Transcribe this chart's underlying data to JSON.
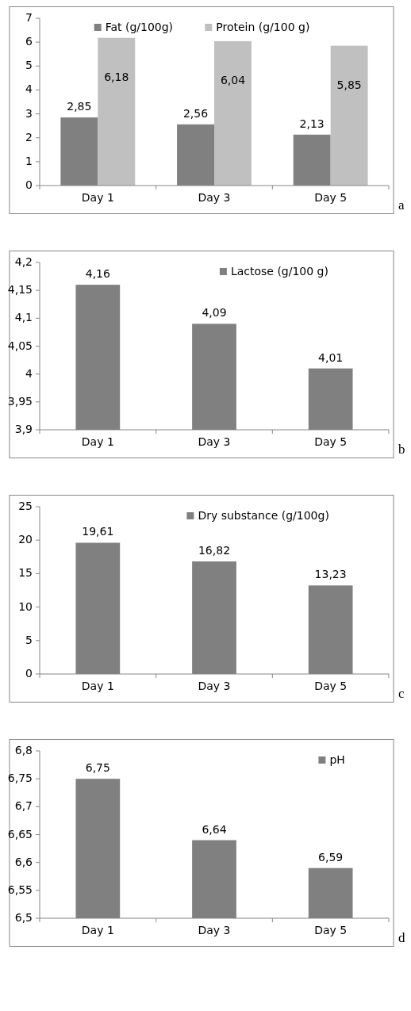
{
  "chart_data": [
    {
      "type": "bar",
      "categories": [
        "Day 1",
        "Day 3",
        "Day 5"
      ],
      "series": [
        {
          "name": "Fat (g/100g)",
          "color": "#808080",
          "values": [
            2.85,
            2.56,
            2.13
          ],
          "value_labels": [
            "2,85",
            "2,56",
            "2,13"
          ]
        },
        {
          "name": "Protein (g/100 g)",
          "color": "#c0c0c0",
          "values": [
            6.18,
            6.04,
            5.85
          ],
          "value_labels": [
            "6,18",
            "6,04",
            "5,85"
          ]
        }
      ],
      "ylim": [
        0,
        7
      ],
      "yticks": [
        0,
        1,
        2,
        3,
        4,
        5,
        6,
        7
      ],
      "legend": "top",
      "grid": false,
      "annotations": [
        "a"
      ]
    },
    {
      "type": "bar",
      "categories": [
        "Day 1",
        "Day 3",
        "Day 5"
      ],
      "series": [
        {
          "name": "Lactose (g/100 g)",
          "color": "#808080",
          "values": [
            4.16,
            4.09,
            4.01
          ],
          "value_labels": [
            "4,16",
            "4,09",
            "4,01"
          ]
        }
      ],
      "ylim": [
        3.9,
        4.2
      ],
      "yticks": [
        {
          "value": 3.9,
          "label": "3,9"
        },
        {
          "value": 3.95,
          "label": "3,95"
        },
        {
          "value": 4,
          "label": "4"
        },
        {
          "value": 4.05,
          "label": "4,05"
        },
        {
          "value": 4.1,
          "label": "4,1"
        },
        {
          "value": 4.15,
          "label": "4,15"
        },
        {
          "value": 4.2,
          "label": "4,2"
        }
      ],
      "legend": "top right",
      "grid": false,
      "annotations": [
        "b"
      ]
    },
    {
      "type": "bar",
      "categories": [
        "Day 1",
        "Day 3",
        "Day 5"
      ],
      "series": [
        {
          "name": "Dry substance (g/100g)",
          "color": "#808080",
          "values": [
            19.61,
            16.82,
            13.23
          ],
          "value_labels": [
            "19,61",
            "16,82",
            "13,23"
          ]
        }
      ],
      "ylim": [
        0,
        25
      ],
      "yticks": [
        0,
        5,
        10,
        15,
        20,
        25
      ],
      "legend": "top right",
      "grid": false,
      "annotations": [
        "c"
      ]
    },
    {
      "type": "bar",
      "categories": [
        "Day 1",
        "Day 3",
        "Day 5"
      ],
      "series": [
        {
          "name": "pH",
          "color": "#808080",
          "values": [
            6.75,
            6.64,
            6.59
          ],
          "value_labels": [
            "6,75",
            "6,64",
            "6,59"
          ]
        }
      ],
      "ylim": [
        6.5,
        6.8
      ],
      "yticks": [
        {
          "value": 6.5,
          "label": "6,5"
        },
        {
          "value": 6.55,
          "label": "6,55"
        },
        {
          "value": 6.6,
          "label": "6,6"
        },
        {
          "value": 6.65,
          "label": "6,65"
        },
        {
          "value": 6.7,
          "label": "6,7"
        },
        {
          "value": 6.75,
          "label": "6,75"
        },
        {
          "value": 6.8,
          "label": "6,8"
        }
      ],
      "legend": "top right",
      "grid": false,
      "annotations": [
        "d"
      ]
    }
  ]
}
